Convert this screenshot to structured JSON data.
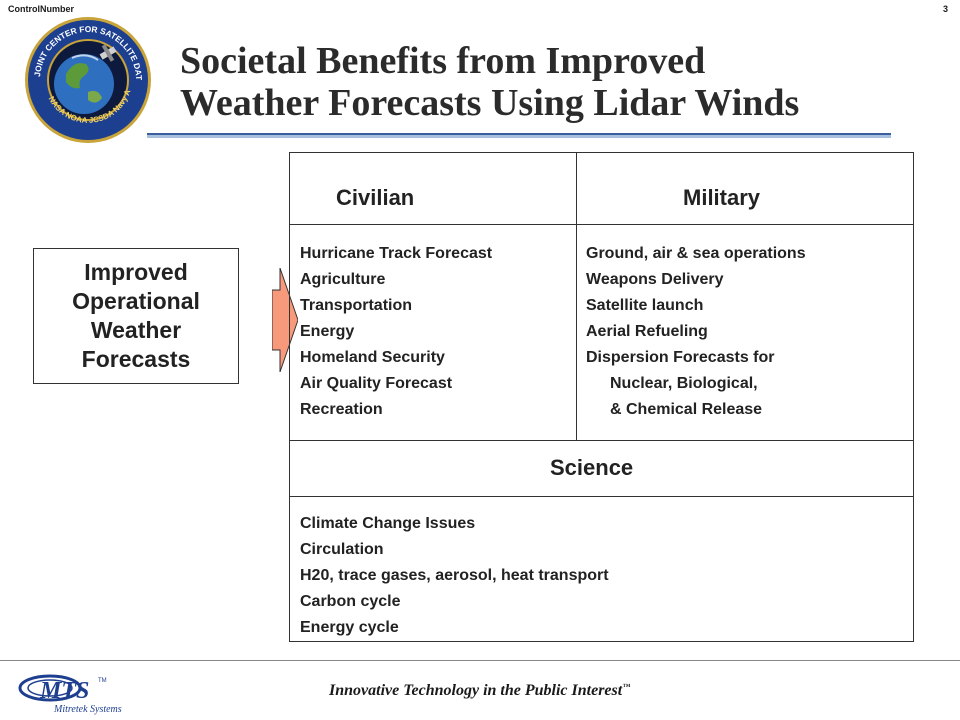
{
  "header": {
    "control_number": "ControlNumber",
    "page_number": "3"
  },
  "logo": {
    "ring_text": "JOINT CENTER FOR SATELLITE DATA ASSIMILATION",
    "bottom_text": "NASA NOAA JCSDA Navy Air Force",
    "ring_color": "#1d3f8f"
  },
  "title": {
    "line1": "Societal Benefits from Improved",
    "line2": "Weather Forecasts Using Lidar Winds"
  },
  "forecast_box": {
    "label": "Improved Operational Weather Forecasts"
  },
  "arrow_color": "#f79a7c",
  "civilian": {
    "heading": "Civilian",
    "items": [
      "Hurricane Track Forecast",
      "Agriculture",
      "Transportation",
      "Energy",
      "Homeland Security",
      "Air Quality Forecast",
      "Recreation"
    ]
  },
  "military": {
    "heading": "Military",
    "items": [
      "Ground, air & sea operations",
      "Weapons Delivery",
      "Satellite launch",
      "Aerial Refueling",
      "Dispersion Forecasts for",
      "Nuclear, Biological,",
      "& Chemical Release"
    ]
  },
  "science": {
    "heading": "Science",
    "items": [
      "Climate Change Issues",
      "Circulation",
      "H20, trace gases, aerosol, heat transport",
      "Carbon cycle",
      "Energy cycle"
    ]
  },
  "footer": {
    "company_abbrev": "MTS",
    "company_tm": "TM",
    "company_name": "Mitretek Systems",
    "tagline": "Innovative Technology in the Public Interest",
    "tagline_tm": "™"
  }
}
